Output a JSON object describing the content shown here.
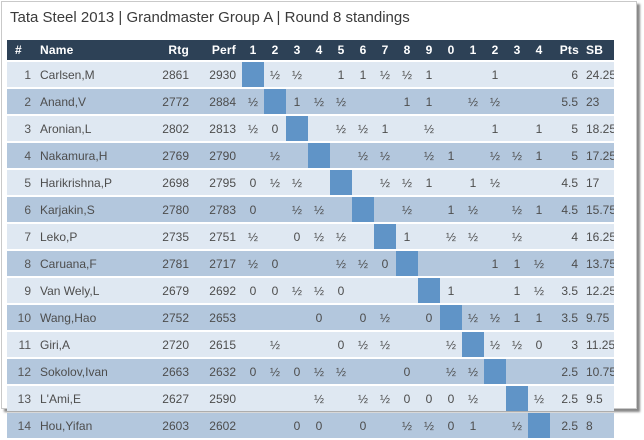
{
  "title": "Tata Steel 2013 | Grandmaster Group A | Round 8 standings",
  "colors": {
    "header_bg": "#2d4156",
    "header_text": "#ffffff",
    "row_light": "#dfe8f2",
    "row_dark": "#b3c7dd",
    "diagonal": "#6094c7",
    "cell_text": "#4d4d4d",
    "title_text": "#3b3b3b"
  },
  "table": {
    "headers": {
      "rank": "#",
      "name": "Name",
      "rtg": "Rtg",
      "perf": "Perf",
      "rounds": [
        "1",
        "2",
        "3",
        "4",
        "5",
        "6",
        "7",
        "8",
        "9",
        "0",
        "1",
        "2",
        "3",
        "4"
      ],
      "pts": "Pts",
      "sb": "SB"
    },
    "players": [
      {
        "rank": "1",
        "name": "Carlsen,M",
        "rtg": "2861",
        "perf": "2930",
        "results": [
          "",
          "½",
          "½",
          "",
          "1",
          "1",
          "½",
          "½",
          "1",
          "",
          "",
          "1",
          "",
          ""
        ],
        "pts": "6",
        "sb": "24.25"
      },
      {
        "rank": "2",
        "name": "Anand,V",
        "rtg": "2772",
        "perf": "2884",
        "results": [
          "½",
          "",
          "1",
          "½",
          "½",
          "",
          "",
          "1",
          "1",
          "",
          "½",
          "½",
          "",
          ""
        ],
        "pts": "5.5",
        "sb": "23"
      },
      {
        "rank": "3",
        "name": "Aronian,L",
        "rtg": "2802",
        "perf": "2813",
        "results": [
          "½",
          "0",
          "",
          "",
          "½",
          "½",
          "1",
          "",
          "½",
          "",
          "",
          "1",
          "",
          "1"
        ],
        "pts": "5",
        "sb": "18.25"
      },
      {
        "rank": "4",
        "name": "Nakamura,H",
        "rtg": "2769",
        "perf": "2790",
        "results": [
          "",
          "½",
          "",
          "",
          "",
          "½",
          "½",
          "",
          "½",
          "1",
          "",
          "½",
          "½",
          "1"
        ],
        "pts": "5",
        "sb": "17.25"
      },
      {
        "rank": "5",
        "name": "Harikrishna,P",
        "rtg": "2698",
        "perf": "2795",
        "results": [
          "0",
          "½",
          "½",
          "",
          "",
          "",
          "½",
          "½",
          "1",
          "",
          "1",
          "½",
          "",
          ""
        ],
        "pts": "4.5",
        "sb": "17"
      },
      {
        "rank": "6",
        "name": "Karjakin,S",
        "rtg": "2780",
        "perf": "2783",
        "results": [
          "0",
          "",
          "½",
          "½",
          "",
          "",
          "",
          "½",
          "",
          "1",
          "½",
          "",
          "½",
          "1"
        ],
        "pts": "4.5",
        "sb": "15.75"
      },
      {
        "rank": "7",
        "name": "Leko,P",
        "rtg": "2735",
        "perf": "2751",
        "results": [
          "½",
          "",
          "0",
          "½",
          "½",
          "",
          "",
          "1",
          "",
          "½",
          "½",
          "",
          "½",
          ""
        ],
        "pts": "4",
        "sb": "16.25"
      },
      {
        "rank": "8",
        "name": "Caruana,F",
        "rtg": "2781",
        "perf": "2717",
        "results": [
          "½",
          "0",
          "",
          "",
          "½",
          "½",
          "0",
          "",
          "",
          "",
          "",
          "1",
          "1",
          "½"
        ],
        "pts": "4",
        "sb": "13.75"
      },
      {
        "rank": "9",
        "name": "Van Wely,L",
        "rtg": "2679",
        "perf": "2692",
        "results": [
          "0",
          "0",
          "½",
          "½",
          "0",
          "",
          "",
          "",
          "",
          "1",
          "",
          "",
          "1",
          "½"
        ],
        "pts": "3.5",
        "sb": "12.25"
      },
      {
        "rank": "10",
        "name": "Wang,Hao",
        "rtg": "2752",
        "perf": "2653",
        "results": [
          "",
          "",
          "",
          "0",
          "",
          "0",
          "½",
          "",
          "0",
          "",
          "½",
          "½",
          "1",
          "1"
        ],
        "pts": "3.5",
        "sb": "9.75"
      },
      {
        "rank": "11",
        "name": "Giri,A",
        "rtg": "2720",
        "perf": "2615",
        "results": [
          "",
          "½",
          "",
          "",
          "0",
          "½",
          "½",
          "",
          "",
          "½",
          "",
          "½",
          "½",
          "0"
        ],
        "pts": "3",
        "sb": "11.25"
      },
      {
        "rank": "12",
        "name": "Sokolov,Ivan",
        "rtg": "2663",
        "perf": "2632",
        "results": [
          "0",
          "½",
          "0",
          "½",
          "½",
          "",
          "",
          "0",
          "",
          "½",
          "½",
          "",
          "",
          ""
        ],
        "pts": "2.5",
        "sb": "10.75"
      },
      {
        "rank": "13",
        "name": "L'Ami,E",
        "rtg": "2627",
        "perf": "2590",
        "results": [
          "",
          "",
          "",
          "½",
          "",
          "½",
          "½",
          "0",
          "0",
          "0",
          "½",
          "",
          "",
          "½"
        ],
        "pts": "2.5",
        "sb": "9.5"
      },
      {
        "rank": "14",
        "name": "Hou,Yifan",
        "rtg": "2603",
        "perf": "2602",
        "results": [
          "",
          "",
          "0",
          "0",
          "",
          "0",
          "",
          "½",
          "½",
          "0",
          "1",
          "",
          "½",
          ""
        ],
        "pts": "2.5",
        "sb": "8"
      }
    ]
  }
}
